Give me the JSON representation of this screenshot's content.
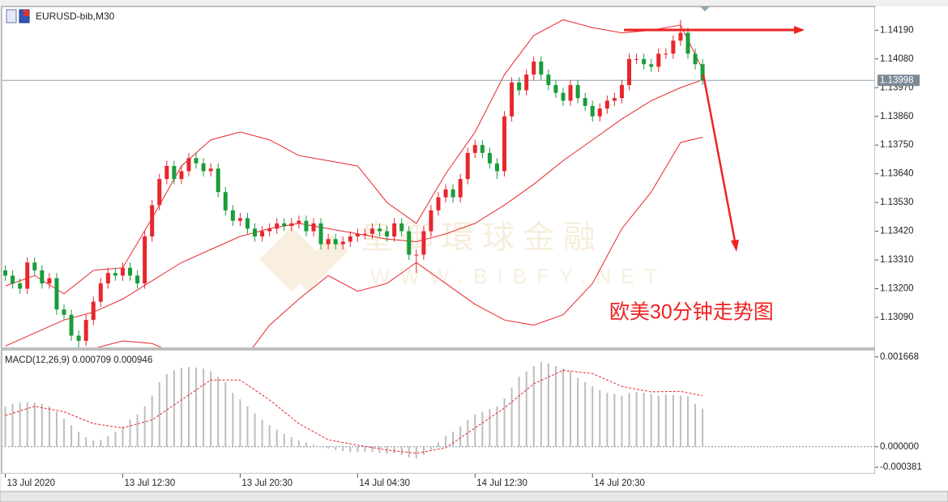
{
  "chart_data": {
    "type": "candlestick",
    "title": "EURUSD-bib,M30",
    "annotation": "欧美30分钟走势图",
    "watermark": "皇御環球金融",
    "watermark_url": "WWW.BIBFY.NET",
    "up_color": "#e8262d",
    "down_color": "#1a9c3a",
    "xlim": [
      -0.5,
      118.5
    ],
    "xticks": [
      {
        "value": 0,
        "label": "13 Jul 2020"
      },
      {
        "value": 16,
        "label": "13 Jul 12:30"
      },
      {
        "value": 32,
        "label": "13 Jul 20:30"
      },
      {
        "value": 48,
        "label": "14 Jul 04:30"
      },
      {
        "value": 64,
        "label": "14 Jul 12:30"
      },
      {
        "value": 80,
        "label": "14 Jul 20:30"
      }
    ],
    "ylim": [
      1.12972,
      1.14281
    ],
    "yticks": [
      {
        "value": 1.1419,
        "label": "1.14190"
      },
      {
        "value": 1.1408,
        "label": "1.14080"
      },
      {
        "value": 1.1397,
        "label": "1.13970"
      },
      {
        "value": 1.1386,
        "label": "1.13860"
      },
      {
        "value": 1.1375,
        "label": "1.13750"
      },
      {
        "value": 1.1364,
        "label": "1.13640"
      },
      {
        "value": 1.1353,
        "label": "1.13530"
      },
      {
        "value": 1.1342,
        "label": "1.13420"
      },
      {
        "value": 1.1331,
        "label": "1.13310"
      },
      {
        "value": 1.132,
        "label": "1.13200"
      },
      {
        "value": 1.1309,
        "label": "1.13090"
      }
    ],
    "last_price": {
      "value": 1.13998,
      "label": "1.13998"
    },
    "open": [
      1.1327,
      1.1325,
      1.1322,
      1.132,
      1.133,
      1.1327,
      1.1322,
      1.1324,
      1.1312,
      1.131,
      1.1302,
      1.13,
      1.1308,
      1.1315,
      1.1322,
      1.1326,
      1.1325,
      1.1328,
      1.1325,
      1.1322,
      1.134,
      1.1352,
      1.1362,
      1.1367,
      1.1362,
      1.1365,
      1.137,
      1.1368,
      1.1365,
      1.1366,
      1.1357,
      1.135,
      1.1346,
      1.1347,
      1.1343,
      1.134,
      1.1342,
      1.1343,
      1.1345,
      1.1344,
      1.1345,
      1.1346,
      1.1342,
      1.1345,
      1.1337,
      1.1339,
      1.1337,
      1.1338,
      1.134,
      1.1341,
      1.1341,
      1.1343,
      1.1342,
      1.134,
      1.1345,
      1.1342,
      1.1333,
      1.1333,
      1.1342,
      1.135,
      1.1355,
      1.1358,
      1.1355,
      1.1362,
      1.1372,
      1.1375,
      1.1372,
      1.1368,
      1.1365,
      1.1386,
      1.1399,
      1.1396,
      1.1402,
      1.1407,
      1.1402,
      1.1398,
      1.1395,
      1.1392,
      1.1398,
      1.1393,
      1.139,
      1.1386,
      1.1389,
      1.1392,
      1.1393,
      1.1398,
      1.1408,
      1.1408,
      1.1406,
      1.1405,
      1.141,
      1.141,
      1.1415,
      1.1418,
      1.141,
      1.1406
    ],
    "high": [
      1.1329,
      1.1327,
      1.1324,
      1.1332,
      1.1332,
      1.1329,
      1.1326,
      1.1326,
      1.1314,
      1.1312,
      1.1304,
      1.131,
      1.1317,
      1.1324,
      1.1328,
      1.1328,
      1.133,
      1.133,
      1.1327,
      1.1342,
      1.1354,
      1.1364,
      1.1369,
      1.1369,
      1.1367,
      1.1372,
      1.1372,
      1.137,
      1.1368,
      1.1368,
      1.1359,
      1.1352,
      1.1349,
      1.1349,
      1.1345,
      1.1344,
      1.1345,
      1.1347,
      1.1347,
      1.1347,
      1.1348,
      1.1348,
      1.1347,
      1.1347,
      1.1341,
      1.1341,
      1.134,
      1.1342,
      1.1343,
      1.1343,
      1.1345,
      1.1345,
      1.1344,
      1.1347,
      1.1347,
      1.1344,
      1.1335,
      1.1344,
      1.1352,
      1.1357,
      1.136,
      1.136,
      1.1364,
      1.1374,
      1.1377,
      1.1377,
      1.1374,
      1.137,
      1.1388,
      1.1401,
      1.1401,
      1.1404,
      1.1409,
      1.1409,
      1.1404,
      1.14,
      1.1397,
      1.14,
      1.14,
      1.1395,
      1.1392,
      1.1391,
      1.1394,
      1.1395,
      1.14,
      1.141,
      1.141,
      1.141,
      1.1408,
      1.1412,
      1.1412,
      1.1417,
      1.1423,
      1.142,
      1.1412,
      1.1408
    ],
    "low": [
      1.1323,
      1.132,
      1.1318,
      1.1318,
      1.1325,
      1.132,
      1.132,
      1.131,
      1.1308,
      1.13,
      1.1296,
      1.1298,
      1.1306,
      1.1313,
      1.132,
      1.1323,
      1.1323,
      1.1323,
      1.132,
      1.132,
      1.1338,
      1.135,
      1.136,
      1.136,
      1.136,
      1.1363,
      1.1366,
      1.1363,
      1.1363,
      1.1355,
      1.1348,
      1.1344,
      1.1344,
      1.1341,
      1.1338,
      1.1338,
      1.134,
      1.1341,
      1.1342,
      1.1342,
      1.1343,
      1.134,
      1.134,
      1.1335,
      1.1335,
      1.1335,
      1.1335,
      1.1336,
      1.1338,
      1.1339,
      1.1339,
      1.134,
      1.1338,
      1.1338,
      1.134,
      1.1331,
      1.1326,
      1.1331,
      1.134,
      1.1348,
      1.1353,
      1.1353,
      1.1353,
      1.136,
      1.137,
      1.137,
      1.1366,
      1.1362,
      1.1363,
      1.1384,
      1.1394,
      1.1394,
      1.14,
      1.14,
      1.1396,
      1.1393,
      1.139,
      1.139,
      1.1391,
      1.1388,
      1.1384,
      1.1384,
      1.1387,
      1.139,
      1.1391,
      1.1396,
      1.1406,
      1.1404,
      1.1403,
      1.1403,
      1.1408,
      1.1408,
      1.1413,
      1.1408,
      1.1404,
      1.1398
    ],
    "close": [
      1.1325,
      1.1322,
      1.132,
      1.133,
      1.1327,
      1.1322,
      1.1324,
      1.1312,
      1.131,
      1.1302,
      1.13,
      1.1308,
      1.1315,
      1.1322,
      1.1326,
      1.1325,
      1.1328,
      1.1325,
      1.1322,
      1.134,
      1.1352,
      1.1362,
      1.1367,
      1.1362,
      1.1365,
      1.137,
      1.1368,
      1.1365,
      1.1366,
      1.1357,
      1.135,
      1.1346,
      1.1347,
      1.1343,
      1.134,
      1.1342,
      1.1343,
      1.1345,
      1.1344,
      1.1345,
      1.1346,
      1.1342,
      1.1345,
      1.1337,
      1.1339,
      1.1337,
      1.1338,
      1.134,
      1.1341,
      1.1341,
      1.1343,
      1.1342,
      1.134,
      1.1345,
      1.1342,
      1.1333,
      1.1333,
      1.1342,
      1.135,
      1.1355,
      1.1358,
      1.1355,
      1.1362,
      1.1372,
      1.1375,
      1.1372,
      1.1368,
      1.1365,
      1.1386,
      1.1399,
      1.1396,
      1.1402,
      1.1407,
      1.1402,
      1.1398,
      1.1395,
      1.1392,
      1.1398,
      1.1393,
      1.139,
      1.1386,
      1.1389,
      1.1392,
      1.1393,
      1.1398,
      1.1408,
      1.1408,
      1.1406,
      1.1405,
      1.141,
      1.141,
      1.1415,
      1.1418,
      1.141,
      1.1406,
      1.13998
    ],
    "bands": {
      "color": "#e8262d",
      "x": [
        0,
        4,
        8,
        12,
        16,
        20,
        24,
        28,
        32,
        36,
        40,
        44,
        48,
        52,
        56,
        60,
        64,
        68,
        72,
        76,
        80,
        84,
        88,
        92,
        95
      ],
      "upper": [
        1.1321,
        1.1325,
        1.1318,
        1.1327,
        1.1328,
        1.1347,
        1.1367,
        1.1377,
        1.138,
        1.1377,
        1.1371,
        1.1369,
        1.1367,
        1.1353,
        1.1345,
        1.1364,
        1.138,
        1.1402,
        1.1417,
        1.1423,
        1.142,
        1.1418,
        1.1419,
        1.1421,
        1.1404
      ],
      "middle": [
        1.1298,
        1.1303,
        1.1308,
        1.1311,
        1.1316,
        1.1323,
        1.133,
        1.1335,
        1.134,
        1.1343,
        1.1345,
        1.1343,
        1.1341,
        1.1339,
        1.1338,
        1.1341,
        1.1345,
        1.1352,
        1.136,
        1.1369,
        1.1377,
        1.1385,
        1.1392,
        1.1397,
        1.14
      ],
      "lower": [
        1.1292,
        1.129,
        1.1292,
        1.1297,
        1.13,
        1.1299,
        1.1294,
        1.1289,
        1.1291,
        1.1306,
        1.1316,
        1.1325,
        1.1319,
        1.1322,
        1.133,
        1.1322,
        1.1314,
        1.1308,
        1.1306,
        1.131,
        1.1322,
        1.1343,
        1.1357,
        1.1376,
        1.1378
      ]
    },
    "macd": {
      "label": "MACD(12,26,9) 0.000709 0.000946",
      "ylim": [
        -0.000499,
        0.001801
      ],
      "yticks": [
        {
          "value": 0.001668,
          "label": "0.001668"
        },
        {
          "value": 0,
          "label": "0.000000"
        },
        {
          "value": -0.000381,
          "label": "-0.000381"
        }
      ],
      "histogram_color": "#bdbdbd",
      "signal_color": "#e8262d",
      "histogram": [
        0.00075,
        0.0008,
        0.00082,
        0.00083,
        0.00082,
        0.0008,
        0.00075,
        0.00065,
        0.00052,
        0.0004,
        0.00028,
        0.00018,
        0.00012,
        0.00013,
        0.0002,
        0.00028,
        0.00038,
        0.0005,
        0.0006,
        0.00075,
        0.00095,
        0.0012,
        0.00135,
        0.00142,
        0.00146,
        0.00148,
        0.00147,
        0.00145,
        0.0014,
        0.0013,
        0.0012,
        0.001,
        0.00088,
        0.00075,
        0.00062,
        0.0005,
        0.0004,
        0.00032,
        0.00024,
        0.00018,
        0.00012,
        8e-05,
        4e-05,
        1e-05,
        -3e-05,
        -6e-05,
        -8e-05,
        -0.0001,
        -0.0001,
        -9e-05,
        -0.0001,
        -0.00012,
        -0.00013,
        -0.00012,
        -0.00015,
        -0.0002,
        -0.00022,
        -0.00015,
        -5e-05,
        8e-05,
        0.0002,
        0.00028,
        0.00038,
        0.0005,
        0.0006,
        0.00065,
        0.0007,
        0.00075,
        0.0009,
        0.0011,
        0.0013,
        0.0014,
        0.0015,
        0.00158,
        0.00155,
        0.0015,
        0.00145,
        0.0014,
        0.00128,
        0.0012,
        0.00112,
        0.00105,
        0.001,
        0.00098,
        0.00095,
        0.001,
        0.00102,
        0.001,
        0.00098,
        0.00095,
        0.00097,
        0.00096,
        0.00095,
        0.00094,
        0.0008,
        0.000709
      ],
      "signal_x": [
        0,
        4,
        8,
        12,
        16,
        20,
        24,
        28,
        32,
        36,
        40,
        44,
        48,
        52,
        56,
        60,
        64,
        68,
        72,
        76,
        80,
        84,
        88,
        92,
        95
      ],
      "signal": [
        0.00058,
        0.00075,
        0.00065,
        0.00043,
        0.00035,
        0.0005,
        0.00087,
        0.00124,
        0.00124,
        0.00087,
        0.00043,
        0.00013,
        3e-05,
        -6e-05,
        -0.00012,
        -2e-05,
        0.00035,
        0.00072,
        0.00117,
        0.00142,
        0.00136,
        0.00112,
        0.00102,
        0.00103,
        0.000946
      ]
    }
  }
}
